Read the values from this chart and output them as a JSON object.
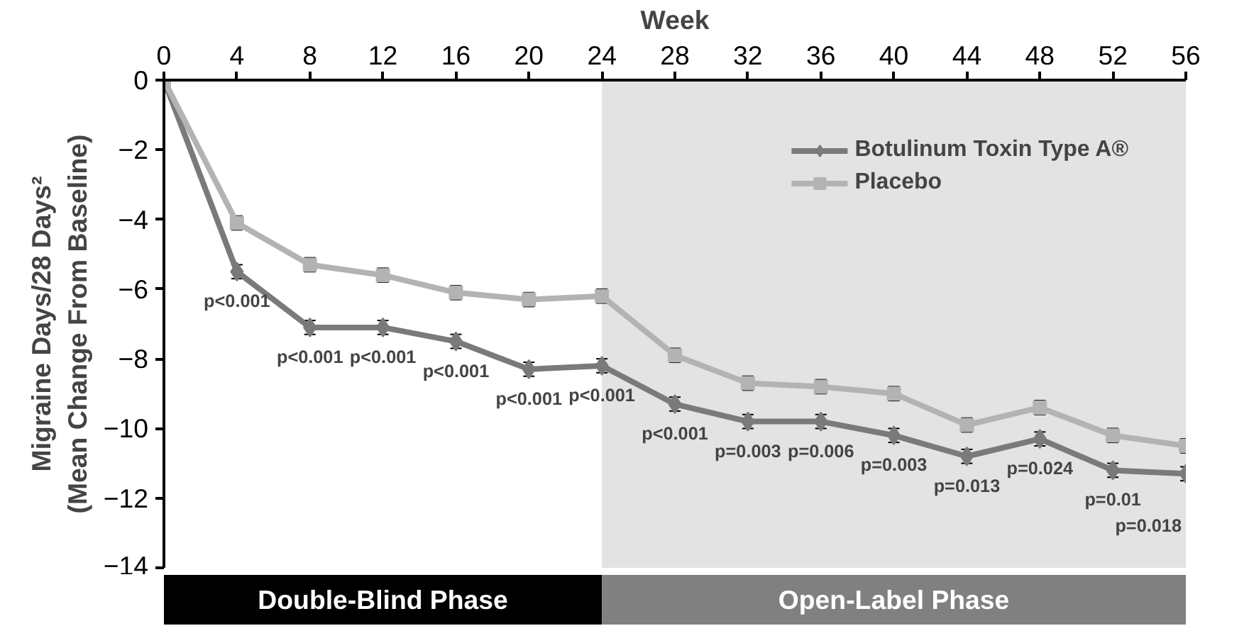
{
  "chart_data": {
    "type": "line",
    "xlabel": "Week",
    "ylabel": "Migraine Days/28 Days²\n(Mean Change From Baseline)",
    "x": [
      0,
      4,
      8,
      12,
      16,
      20,
      24,
      28,
      32,
      36,
      40,
      44,
      48,
      52,
      56
    ],
    "xlim": [
      0,
      56
    ],
    "xticks": [
      0,
      4,
      8,
      12,
      16,
      20,
      24,
      28,
      32,
      36,
      40,
      44,
      48,
      52,
      56
    ],
    "ylim": [
      -14,
      0
    ],
    "yticks": [
      0,
      -2,
      -4,
      -6,
      -8,
      -10,
      -12,
      -14
    ],
    "series": [
      {
        "name": "Botulinum Toxin Type A®",
        "color": "#7a7a7a",
        "marker": "diamond",
        "values": [
          0,
          -5.5,
          -7.1,
          -7.1,
          -7.5,
          -8.3,
          -8.2,
          -9.3,
          -9.8,
          -9.8,
          -10.2,
          -10.8,
          -10.3,
          -11.2,
          -11.3
        ],
        "errors": [
          null,
          0.2,
          0.2,
          0.2,
          0.2,
          0.2,
          0.2,
          0.2,
          0.2,
          0.2,
          0.2,
          0.2,
          0.2,
          0.2,
          0.2
        ]
      },
      {
        "name": "Placebo",
        "color": "#b3b3b3",
        "marker": "square",
        "values": [
          0,
          -4.1,
          -5.3,
          -5.6,
          -6.1,
          -6.3,
          -6.2,
          -7.9,
          -8.7,
          -8.8,
          -9.0,
          -9.9,
          -9.4,
          -10.2,
          -10.5
        ],
        "errors": [
          null,
          0.2,
          0.2,
          0.2,
          0.2,
          0.2,
          0.2,
          0.2,
          0.2,
          0.2,
          0.2,
          0.2,
          0.2,
          0.2,
          0.2
        ]
      }
    ],
    "bands": [
      {
        "axis": "x",
        "from": 24,
        "to": 56,
        "label": "Open-Label Phase",
        "color": "#e3e3e3"
      }
    ],
    "annotations": [
      "Double-Blind Phase",
      {
        "text": "p<0.001",
        "x": 4,
        "y": -5.5
      },
      {
        "text": "p<0.001",
        "x": 8,
        "y": -7.1
      },
      {
        "text": "p<0.001",
        "x": 12,
        "y": -7.1
      },
      {
        "text": "p<0.001",
        "x": 16,
        "y": -7.5
      },
      {
        "text": "p<0.001",
        "x": 20,
        "y": -8.3
      },
      {
        "text": "p<0.001",
        "x": 24,
        "y": -8.2
      },
      {
        "text": "p<0.001",
        "x": 28,
        "y": -9.3
      },
      {
        "text": "p=0.003",
        "x": 32,
        "y": -9.8
      },
      {
        "text": "p=0.006",
        "x": 36,
        "y": -9.8
      },
      {
        "text": "p=0.003",
        "x": 40,
        "y": -10.2
      },
      {
        "text": "p=0.013",
        "x": 44,
        "y": -10.8
      },
      {
        "text": "p=0.024",
        "x": 48,
        "y": -10.3
      },
      {
        "text": "p=0.01",
        "x": 52,
        "y": -11.2
      },
      {
        "text": "p=0.018",
        "x": 56,
        "y": -11.3
      }
    ],
    "legend": "top right",
    "grid": false,
    "line_style": "solid"
  }
}
